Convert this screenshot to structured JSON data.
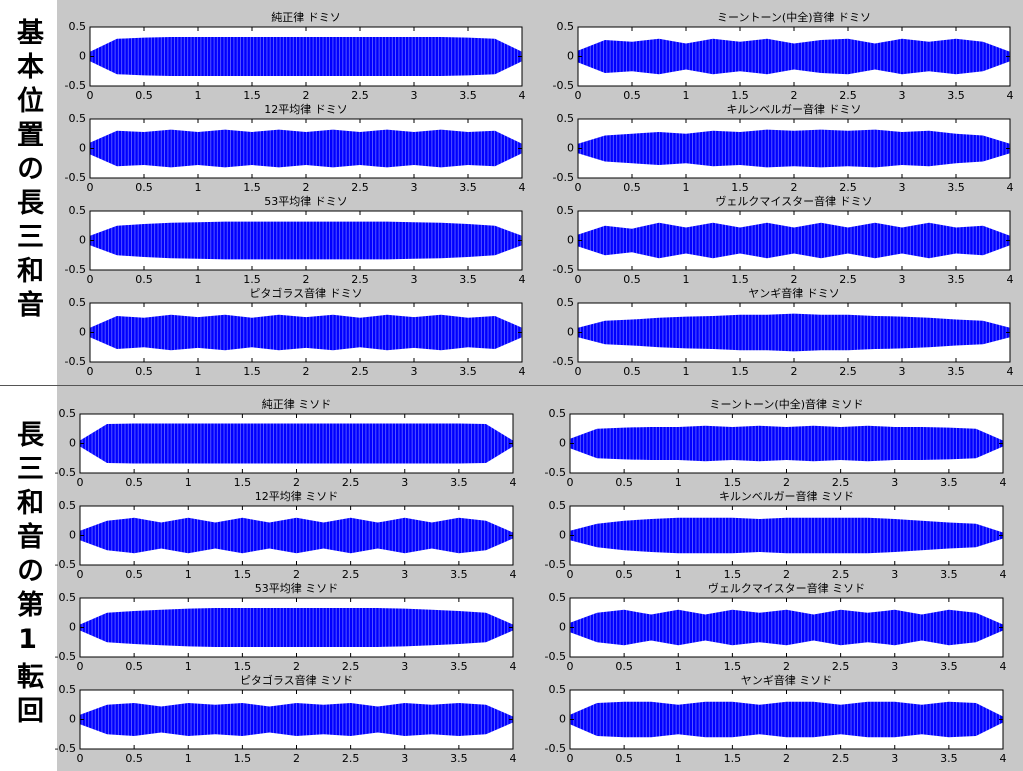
{
  "groups": [
    "基本位置の長三和音",
    "長三和音の第1転回"
  ],
  "chart_data": [
    {
      "type": "waveform",
      "title": "純正律 ドミソ",
      "color": "#0000ff",
      "xlim": [
        0,
        4
      ],
      "ylim": [
        -0.5,
        0.5
      ],
      "xticks": [
        0,
        0.5,
        1,
        1.5,
        2,
        2.5,
        3,
        3.5,
        4
      ],
      "yticks": [
        -0.5,
        0,
        0.5
      ],
      "x": [
        0,
        0.25,
        0.5,
        0.75,
        1,
        1.25,
        1.5,
        1.75,
        2,
        2.25,
        2.5,
        2.75,
        3,
        3.25,
        3.5,
        3.75,
        4
      ],
      "values": [
        0.08,
        0.3,
        0.32,
        0.33,
        0.33,
        0.33,
        0.33,
        0.33,
        0.33,
        0.33,
        0.33,
        0.33,
        0.33,
        0.33,
        0.32,
        0.3,
        0.08
      ]
    },
    {
      "type": "waveform",
      "title": "ミーントーン(中全)音律 ドミソ",
      "color": "#0000ff",
      "xlim": [
        0,
        4
      ],
      "ylim": [
        -0.5,
        0.5
      ],
      "xticks": [
        0,
        0.5,
        1,
        1.5,
        2,
        2.5,
        3,
        3.5,
        4
      ],
      "yticks": [
        -0.5,
        0,
        0.5
      ],
      "x": [
        0,
        0.25,
        0.5,
        0.75,
        1,
        1.25,
        1.5,
        1.75,
        2,
        2.25,
        2.5,
        2.75,
        3,
        3.25,
        3.5,
        3.75,
        4
      ],
      "values": [
        0.1,
        0.28,
        0.25,
        0.3,
        0.22,
        0.3,
        0.25,
        0.3,
        0.22,
        0.28,
        0.3,
        0.22,
        0.3,
        0.25,
        0.3,
        0.25,
        0.08
      ]
    },
    {
      "type": "waveform",
      "title": "12平均律 ドミソ",
      "color": "#0000ff",
      "xlim": [
        0,
        4
      ],
      "ylim": [
        -0.5,
        0.5
      ],
      "xticks": [
        0,
        0.5,
        1,
        1.5,
        2,
        2.5,
        3,
        3.5,
        4
      ],
      "yticks": [
        -0.5,
        0,
        0.5
      ],
      "x": [
        0,
        0.25,
        0.5,
        0.75,
        1,
        1.25,
        1.5,
        1.75,
        2,
        2.25,
        2.5,
        2.75,
        3,
        3.25,
        3.5,
        3.75,
        4
      ],
      "values": [
        0.1,
        0.3,
        0.28,
        0.32,
        0.28,
        0.32,
        0.28,
        0.32,
        0.28,
        0.32,
        0.28,
        0.32,
        0.28,
        0.32,
        0.28,
        0.3,
        0.08
      ]
    },
    {
      "type": "waveform",
      "title": "キルンベルガー音律 ドミソ",
      "color": "#0000ff",
      "xlim": [
        0,
        4
      ],
      "ylim": [
        -0.5,
        0.5
      ],
      "xticks": [
        0,
        0.5,
        1,
        1.5,
        2,
        2.5,
        3,
        3.5,
        4
      ],
      "yticks": [
        -0.5,
        0,
        0.5
      ],
      "x": [
        0,
        0.25,
        0.5,
        0.75,
        1,
        1.25,
        1.5,
        1.75,
        2,
        2.25,
        2.5,
        2.75,
        3,
        3.25,
        3.5,
        3.75,
        4
      ],
      "values": [
        0.08,
        0.22,
        0.25,
        0.28,
        0.25,
        0.3,
        0.28,
        0.32,
        0.3,
        0.32,
        0.3,
        0.32,
        0.28,
        0.3,
        0.25,
        0.22,
        0.08
      ]
    },
    {
      "type": "waveform",
      "title": "53平均律 ドミソ",
      "color": "#0000ff",
      "xlim": [
        0,
        4
      ],
      "ylim": [
        -0.5,
        0.5
      ],
      "xticks": [
        0,
        0.5,
        1,
        1.5,
        2,
        2.5,
        3,
        3.5,
        4
      ],
      "yticks": [
        -0.5,
        0,
        0.5
      ],
      "x": [
        0,
        0.25,
        0.5,
        0.75,
        1,
        1.25,
        1.5,
        1.75,
        2,
        2.25,
        2.5,
        2.75,
        3,
        3.25,
        3.5,
        3.75,
        4
      ],
      "values": [
        0.08,
        0.25,
        0.28,
        0.3,
        0.31,
        0.32,
        0.32,
        0.32,
        0.32,
        0.32,
        0.32,
        0.32,
        0.31,
        0.3,
        0.28,
        0.25,
        0.08
      ]
    },
    {
      "type": "waveform",
      "title": "ヴェルクマイスター音律 ドミソ",
      "color": "#0000ff",
      "xlim": [
        0,
        4
      ],
      "ylim": [
        -0.5,
        0.5
      ],
      "xticks": [
        0,
        0.5,
        1,
        1.5,
        2,
        2.5,
        3,
        3.5,
        4
      ],
      "yticks": [
        -0.5,
        0,
        0.5
      ],
      "x": [
        0,
        0.25,
        0.5,
        0.75,
        1,
        1.25,
        1.5,
        1.75,
        2,
        2.25,
        2.5,
        2.75,
        3,
        3.25,
        3.5,
        3.75,
        4
      ],
      "values": [
        0.1,
        0.25,
        0.2,
        0.3,
        0.22,
        0.3,
        0.22,
        0.3,
        0.22,
        0.3,
        0.22,
        0.3,
        0.22,
        0.3,
        0.22,
        0.25,
        0.08
      ]
    },
    {
      "type": "waveform",
      "title": "ピタゴラス音律 ドミソ",
      "color": "#0000ff",
      "xlim": [
        0,
        4
      ],
      "ylim": [
        -0.5,
        0.5
      ],
      "xticks": [
        0,
        0.5,
        1,
        1.5,
        2,
        2.5,
        3,
        3.5,
        4
      ],
      "yticks": [
        -0.5,
        0,
        0.5
      ],
      "x": [
        0,
        0.25,
        0.5,
        0.75,
        1,
        1.25,
        1.5,
        1.75,
        2,
        2.25,
        2.5,
        2.75,
        3,
        3.25,
        3.5,
        3.75,
        4
      ],
      "values": [
        0.08,
        0.28,
        0.25,
        0.3,
        0.26,
        0.3,
        0.25,
        0.3,
        0.26,
        0.3,
        0.25,
        0.3,
        0.26,
        0.3,
        0.25,
        0.28,
        0.08
      ]
    },
    {
      "type": "waveform",
      "title": "ヤンギ音律 ドミソ",
      "color": "#0000ff",
      "xlim": [
        0,
        4
      ],
      "ylim": [
        -0.5,
        0.5
      ],
      "xticks": [
        0,
        0.5,
        1,
        1.5,
        2,
        2.5,
        3,
        3.5,
        4
      ],
      "yticks": [
        -0.5,
        0,
        0.5
      ],
      "x": [
        0,
        0.25,
        0.5,
        0.75,
        1,
        1.25,
        1.5,
        1.75,
        2,
        2.25,
        2.5,
        2.75,
        3,
        3.25,
        3.5,
        3.75,
        4
      ],
      "values": [
        0.08,
        0.2,
        0.22,
        0.25,
        0.27,
        0.28,
        0.3,
        0.3,
        0.32,
        0.3,
        0.3,
        0.28,
        0.27,
        0.25,
        0.22,
        0.2,
        0.08
      ]
    },
    {
      "type": "waveform",
      "title": "純正律 ミソド",
      "color": "#0000ff",
      "xlim": [
        0,
        4
      ],
      "ylim": [
        -0.5,
        0.5
      ],
      "xticks": [
        0,
        0.5,
        1,
        1.5,
        2,
        2.5,
        3,
        3.5,
        4
      ],
      "yticks": [
        -0.5,
        0,
        0.5
      ],
      "x": [
        0,
        0.25,
        0.5,
        0.75,
        1,
        1.25,
        1.5,
        1.75,
        2,
        2.25,
        2.5,
        2.75,
        3,
        3.25,
        3.5,
        3.75,
        4
      ],
      "values": [
        0.05,
        0.33,
        0.34,
        0.34,
        0.34,
        0.34,
        0.34,
        0.34,
        0.34,
        0.34,
        0.34,
        0.34,
        0.34,
        0.34,
        0.34,
        0.33,
        0.05
      ]
    },
    {
      "type": "waveform",
      "title": "ミーントーン(中全)音律 ミソド",
      "color": "#0000ff",
      "xlim": [
        0,
        4
      ],
      "ylim": [
        -0.5,
        0.5
      ],
      "xticks": [
        0,
        0.5,
        1,
        1.5,
        2,
        2.5,
        3,
        3.5,
        4
      ],
      "yticks": [
        -0.5,
        0,
        0.5
      ],
      "x": [
        0,
        0.25,
        0.5,
        0.75,
        1,
        1.25,
        1.5,
        1.75,
        2,
        2.25,
        2.5,
        2.75,
        3,
        3.25,
        3.5,
        3.75,
        4
      ],
      "values": [
        0.08,
        0.25,
        0.27,
        0.28,
        0.28,
        0.3,
        0.28,
        0.3,
        0.28,
        0.3,
        0.28,
        0.3,
        0.28,
        0.28,
        0.27,
        0.25,
        0.05
      ]
    },
    {
      "type": "waveform",
      "title": "12平均律 ミソド",
      "color": "#0000ff",
      "xlim": [
        0,
        4
      ],
      "ylim": [
        -0.5,
        0.5
      ],
      "xticks": [
        0,
        0.5,
        1,
        1.5,
        2,
        2.5,
        3,
        3.5,
        4
      ],
      "yticks": [
        -0.5,
        0,
        0.5
      ],
      "x": [
        0,
        0.25,
        0.5,
        0.75,
        1,
        1.25,
        1.5,
        1.75,
        2,
        2.25,
        2.5,
        2.75,
        3,
        3.25,
        3.5,
        3.75,
        4
      ],
      "values": [
        0.08,
        0.25,
        0.3,
        0.22,
        0.3,
        0.22,
        0.3,
        0.22,
        0.3,
        0.22,
        0.3,
        0.22,
        0.3,
        0.22,
        0.3,
        0.25,
        0.05
      ]
    },
    {
      "type": "waveform",
      "title": "キルンベルガー音律 ミソド",
      "color": "#0000ff",
      "xlim": [
        0,
        4
      ],
      "ylim": [
        -0.5,
        0.5
      ],
      "xticks": [
        0,
        0.5,
        1,
        1.5,
        2,
        2.5,
        3,
        3.5,
        4
      ],
      "yticks": [
        -0.5,
        0,
        0.5
      ],
      "x": [
        0,
        0.25,
        0.5,
        0.75,
        1,
        1.25,
        1.5,
        1.75,
        2,
        2.25,
        2.5,
        2.75,
        3,
        3.25,
        3.5,
        3.75,
        4
      ],
      "values": [
        0.08,
        0.2,
        0.25,
        0.28,
        0.3,
        0.3,
        0.3,
        0.28,
        0.3,
        0.3,
        0.3,
        0.3,
        0.28,
        0.25,
        0.22,
        0.2,
        0.05
      ]
    },
    {
      "type": "waveform",
      "title": "53平均律 ミソド",
      "color": "#0000ff",
      "xlim": [
        0,
        4
      ],
      "ylim": [
        -0.5,
        0.5
      ],
      "xticks": [
        0,
        0.5,
        1,
        1.5,
        2,
        2.5,
        3,
        3.5,
        4
      ],
      "yticks": [
        -0.5,
        0,
        0.5
      ],
      "x": [
        0,
        0.25,
        0.5,
        0.75,
        1,
        1.25,
        1.5,
        1.75,
        2,
        2.25,
        2.5,
        2.75,
        3,
        3.25,
        3.5,
        3.75,
        4
      ],
      "values": [
        0.05,
        0.25,
        0.28,
        0.3,
        0.32,
        0.33,
        0.33,
        0.33,
        0.33,
        0.33,
        0.33,
        0.33,
        0.32,
        0.3,
        0.28,
        0.25,
        0.05
      ]
    },
    {
      "type": "waveform",
      "title": "ヴェルクマイスター音律 ミソド",
      "color": "#0000ff",
      "xlim": [
        0,
        4
      ],
      "ylim": [
        -0.5,
        0.5
      ],
      "xticks": [
        0,
        0.5,
        1,
        1.5,
        2,
        2.5,
        3,
        3.5,
        4
      ],
      "yticks": [
        -0.5,
        0,
        0.5
      ],
      "x": [
        0,
        0.25,
        0.5,
        0.75,
        1,
        1.25,
        1.5,
        1.75,
        2,
        2.25,
        2.5,
        2.75,
        3,
        3.25,
        3.5,
        3.75,
        4
      ],
      "values": [
        0.08,
        0.25,
        0.3,
        0.22,
        0.3,
        0.22,
        0.3,
        0.25,
        0.3,
        0.22,
        0.3,
        0.25,
        0.3,
        0.22,
        0.3,
        0.25,
        0.05
      ]
    },
    {
      "type": "waveform",
      "title": "ピタゴラス音律 ミソド",
      "color": "#0000ff",
      "xlim": [
        0,
        4
      ],
      "ylim": [
        -0.5,
        0.5
      ],
      "xticks": [
        0,
        0.5,
        1,
        1.5,
        2,
        2.5,
        3,
        3.5,
        4
      ],
      "yticks": [
        -0.5,
        0,
        0.5
      ],
      "x": [
        0,
        0.25,
        0.5,
        0.75,
        1,
        1.25,
        1.5,
        1.75,
        2,
        2.25,
        2.5,
        2.75,
        3,
        3.25,
        3.5,
        3.75,
        4
      ],
      "values": [
        0.08,
        0.25,
        0.28,
        0.22,
        0.28,
        0.25,
        0.28,
        0.22,
        0.28,
        0.25,
        0.28,
        0.22,
        0.28,
        0.25,
        0.28,
        0.25,
        0.05
      ]
    },
    {
      "type": "waveform",
      "title": "ヤンギ音律 ミソド",
      "color": "#0000ff",
      "xlim": [
        0,
        4
      ],
      "ylim": [
        -0.5,
        0.5
      ],
      "xticks": [
        0,
        0.5,
        1,
        1.5,
        2,
        2.5,
        3,
        3.5,
        4
      ],
      "yticks": [
        -0.5,
        0,
        0.5
      ],
      "x": [
        0,
        0.25,
        0.5,
        0.75,
        1,
        1.25,
        1.5,
        1.75,
        2,
        2.25,
        2.5,
        2.75,
        3,
        3.25,
        3.5,
        3.75,
        4
      ],
      "values": [
        0.08,
        0.28,
        0.3,
        0.3,
        0.25,
        0.3,
        0.3,
        0.25,
        0.3,
        0.3,
        0.25,
        0.3,
        0.3,
        0.25,
        0.3,
        0.28,
        0.05
      ]
    }
  ]
}
